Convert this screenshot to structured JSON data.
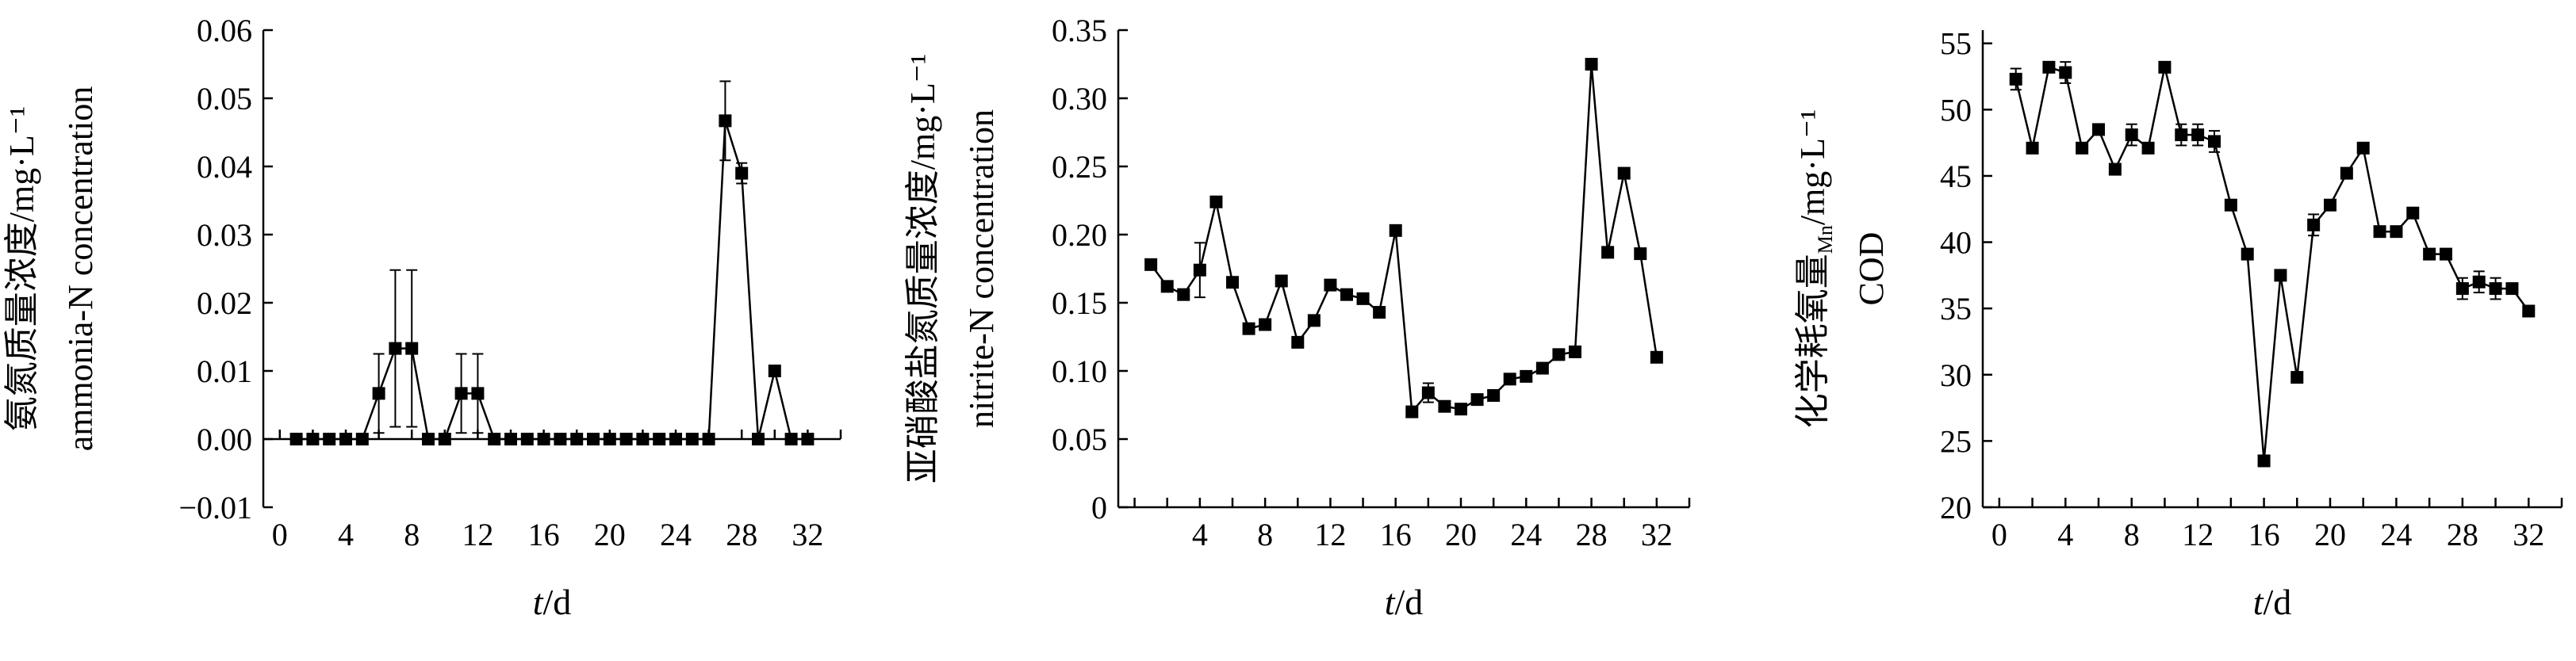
{
  "chart_data": [
    {
      "type": "line",
      "ylabel_lines": [
        "氨氮质量浓度/mg·L⁻¹",
        "ammonia-N concentration"
      ],
      "xlabel_italic": "t",
      "xlabel_rest": "/d",
      "xlim": [
        -1,
        34
      ],
      "ylim": [
        -0.01,
        0.06
      ],
      "x_ticks": [
        "0",
        "4",
        "8",
        "12",
        "16",
        "20",
        "24",
        "28",
        "32"
      ],
      "y_ticks": [
        "−0.01",
        "0.00",
        "0.01",
        "0.02",
        "0.03",
        "0.04",
        "0.05",
        "0.06"
      ],
      "y_tick_values": [
        -0.01,
        0,
        0.01,
        0.02,
        0.03,
        0.04,
        0.05,
        0.06
      ],
      "x": [
        1,
        2,
        3,
        4,
        5,
        6,
        7,
        8,
        9,
        10,
        11,
        12,
        13,
        14,
        15,
        16,
        17,
        18,
        19,
        20,
        21,
        22,
        23,
        24,
        25,
        26,
        27,
        28,
        29,
        30,
        31,
        32
      ],
      "y": [
        0,
        0,
        0,
        0,
        0,
        0.0067,
        0.0133,
        0.0133,
        0,
        0,
        0.0067,
        0.0067,
        0,
        0,
        0,
        0,
        0,
        0,
        0,
        0,
        0,
        0,
        0,
        0,
        0,
        0,
        0.0467,
        0.039,
        0,
        0.01,
        0,
        0
      ],
      "err": [
        0,
        0,
        0,
        0,
        0,
        0.0058,
        0.0115,
        0.0115,
        0,
        0,
        0.0058,
        0.0058,
        0,
        0,
        0,
        0,
        0,
        0,
        0,
        0,
        0,
        0,
        0,
        0,
        0,
        0,
        0.0058,
        0.0015,
        0,
        0,
        0,
        0
      ]
    },
    {
      "type": "line",
      "ylabel_lines": [
        "亚硝酸盐氮质量浓度/mg·L⁻¹",
        "nitrite-N concentration"
      ],
      "xlabel_italic": "t",
      "xlabel_rest": "/d",
      "xlim": [
        -1,
        34
      ],
      "ylim": [
        0,
        0.35
      ],
      "x_ticks": [
        "4",
        "8",
        "12",
        "16",
        "20",
        "24",
        "28",
        "32"
      ],
      "y_ticks": [
        "0",
        "0.05",
        "0.10",
        "0.15",
        "0.20",
        "0.25",
        "0.30",
        "0.35"
      ],
      "y_tick_values": [
        0,
        0.05,
        0.1,
        0.15,
        0.2,
        0.25,
        0.3,
        0.35
      ],
      "x": [
        1,
        2,
        3,
        4,
        5,
        6,
        7,
        8,
        9,
        10,
        11,
        12,
        13,
        14,
        15,
        16,
        17,
        18,
        19,
        20,
        21,
        22,
        23,
        24,
        25,
        26,
        27,
        28,
        29,
        30,
        31,
        32
      ],
      "y": [
        0.178,
        0.162,
        0.156,
        0.174,
        0.224,
        0.165,
        0.131,
        0.134,
        0.166,
        0.121,
        0.137,
        0.163,
        0.156,
        0.153,
        0.143,
        0.203,
        0.07,
        0.084,
        0.074,
        0.072,
        0.079,
        0.082,
        0.094,
        0.096,
        0.102,
        0.112,
        0.114,
        0.325,
        0.187,
        0.245,
        0.186,
        0.11
      ],
      "err": [
        0,
        0,
        0,
        0.02,
        0,
        0,
        0,
        0,
        0,
        0,
        0,
        0,
        0,
        0,
        0,
        0,
        0,
        0.007,
        0,
        0,
        0,
        0,
        0,
        0,
        0,
        0,
        0,
        0,
        0,
        0,
        0,
        0
      ]
    },
    {
      "type": "line",
      "ylabel_lines": [
        "化学耗氧量",
        "COD"
      ],
      "ylabel_unit": "/mg·L⁻¹",
      "ylabel_sub": "Mn",
      "xlabel_italic": "t",
      "xlabel_rest": "/d",
      "xlim": [
        -1,
        34
      ],
      "ylim": [
        20,
        56
      ],
      "x_ticks": [
        "0",
        "4",
        "8",
        "12",
        "16",
        "20",
        "24",
        "28",
        "32"
      ],
      "y_ticks": [
        "20",
        "25",
        "30",
        "35",
        "40",
        "45",
        "50",
        "55"
      ],
      "y_tick_values": [
        20,
        25,
        30,
        35,
        40,
        45,
        50,
        55
      ],
      "x": [
        1,
        2,
        3,
        4,
        5,
        6,
        7,
        8,
        9,
        10,
        11,
        12,
        13,
        14,
        15,
        16,
        17,
        18,
        19,
        20,
        21,
        22,
        23,
        24,
        25,
        26,
        27,
        28,
        29,
        30,
        31,
        32
      ],
      "y": [
        52.3,
        47.1,
        53.2,
        52.8,
        47.1,
        48.5,
        45.5,
        48.1,
        47.1,
        53.2,
        48.1,
        48.1,
        47.6,
        42.8,
        39.1,
        23.5,
        37.5,
        29.8,
        41.3,
        42.8,
        45.2,
        47.1,
        40.8,
        40.8,
        42.2,
        39.1,
        39.1,
        36.5,
        37.0,
        36.5,
        36.5,
        34.8
      ],
      "err": [
        0.8,
        0,
        0,
        0.8,
        0,
        0,
        0,
        0.8,
        0,
        0,
        0.8,
        0.8,
        0.8,
        0,
        0,
        0,
        0,
        0,
        0.8,
        0,
        0,
        0,
        0,
        0,
        0,
        0,
        0,
        0.8,
        0.8,
        0.8,
        0,
        0
      ]
    }
  ]
}
